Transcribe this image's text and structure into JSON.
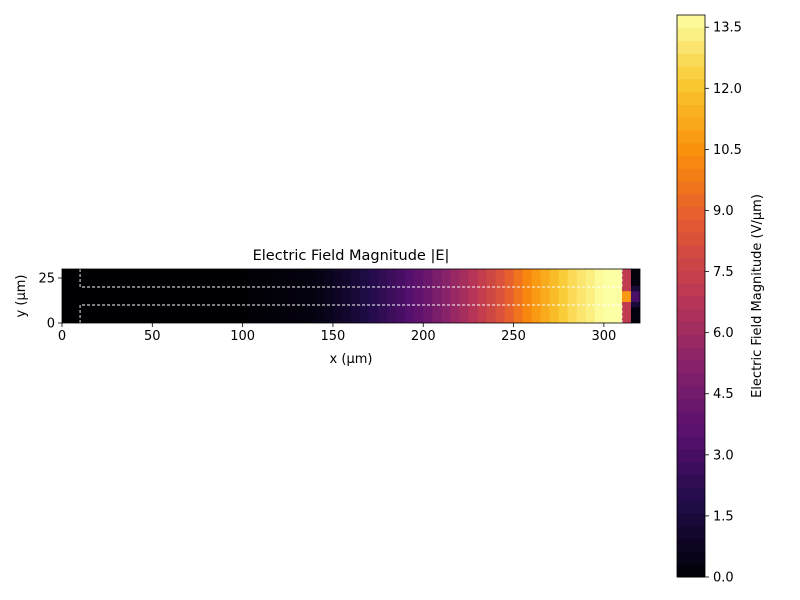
{
  "chart_data": [
    {
      "type": "heatmap",
      "title": "Electric Field Magnitude |E|",
      "xlabel": "x (μm)",
      "ylabel": "y (μm)",
      "xlim": [
        0,
        320
      ],
      "ylim": [
        0,
        30
      ],
      "x_ticks": [
        0,
        50,
        100,
        150,
        200,
        250,
        300
      ],
      "x_tick_labels": [
        "0",
        "50",
        "100",
        "150",
        "200",
        "250",
        "300"
      ],
      "y_ticks": [
        0,
        25
      ],
      "y_tick_labels": [
        "0",
        "25"
      ],
      "grid": false,
      "colormap": "inferno",
      "field_profile": {
        "x": [
          0,
          10,
          50,
          100,
          140,
          160,
          180,
          200,
          220,
          240,
          260,
          280,
          300,
          310,
          315,
          320
        ],
        "value": [
          0,
          0,
          0,
          0,
          0.3,
          1.2,
          2.5,
          4.0,
          6.0,
          8.0,
          10.5,
          12.5,
          13.8,
          13.8,
          0.5,
          0
        ]
      },
      "hotspot": {
        "x": 310,
        "y": 15,
        "value": 13.8
      },
      "channel_outline": [
        {
          "name": "upper wall",
          "points": [
            [
              10,
              30
            ],
            [
              10,
              20
            ],
            [
              310,
              20
            ],
            [
              310,
              30
            ]
          ]
        },
        {
          "name": "lower wall",
          "points": [
            [
              10,
              0
            ],
            [
              10,
              10
            ],
            [
              310,
              10
            ],
            [
              310,
              0
            ]
          ]
        }
      ]
    },
    {
      "type": "colorbar",
      "label": "Electric Field Magnitude (V/μm)",
      "vmin": 0,
      "vmax": 13.8,
      "ticks": [
        0.0,
        1.5,
        3.0,
        4.5,
        6.0,
        7.5,
        9.0,
        10.5,
        12.0,
        13.5
      ],
      "tick_labels": [
        "0.0",
        "1.5",
        "3.0",
        "4.5",
        "6.0",
        "7.5",
        "9.0",
        "10.5",
        "12.0",
        "13.5"
      ],
      "levels": 44
    }
  ]
}
